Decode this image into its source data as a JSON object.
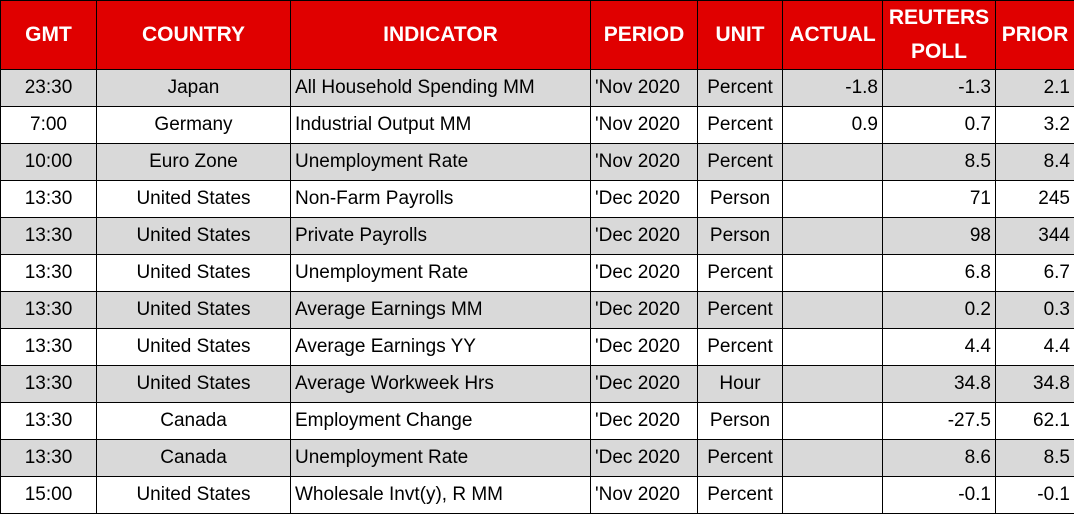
{
  "table": {
    "headers": [
      "GMT",
      "COUNTRY",
      "INDICATOR",
      "PERIOD",
      "UNIT",
      "ACTUAL",
      "REUTERS POLL",
      "PRIOR"
    ],
    "rows": [
      [
        "23:30",
        "Japan",
        "All Household Spending MM",
        "'Nov 2020",
        "Percent",
        "-1.8",
        "-1.3",
        "2.1"
      ],
      [
        "7:00",
        "Germany",
        "Industrial Output MM",
        "'Nov 2020",
        "Percent",
        "0.9",
        "0.7",
        "3.2"
      ],
      [
        "10:00",
        "Euro Zone",
        "Unemployment Rate",
        "'Nov 2020",
        "Percent",
        null,
        "8.5",
        "8.4"
      ],
      [
        "13:30",
        "United States",
        "Non-Farm Payrolls",
        "'Dec 2020",
        "Person",
        null,
        "71",
        "245"
      ],
      [
        "13:30",
        "United States",
        "Private Payrolls",
        "'Dec 2020",
        "Person",
        null,
        "98",
        "344"
      ],
      [
        "13:30",
        "United States",
        "Unemployment Rate",
        "'Dec 2020",
        "Percent",
        null,
        "6.8",
        "6.7"
      ],
      [
        "13:30",
        "United States",
        "Average Earnings MM",
        "'Dec 2020",
        "Percent",
        null,
        "0.2",
        "0.3"
      ],
      [
        "13:30",
        "United States",
        "Average Earnings YY",
        "'Dec 2020",
        "Percent",
        null,
        "4.4",
        "4.4"
      ],
      [
        "13:30",
        "United States",
        "Average Workweek Hrs",
        "'Dec 2020",
        "Hour",
        null,
        "34.8",
        "34.8"
      ],
      [
        "13:30",
        "Canada",
        "Employment Change",
        "'Dec 2020",
        "Person",
        null,
        "-27.5",
        "62.1"
      ],
      [
        "13:30",
        "Canada",
        "Unemployment Rate",
        "'Dec 2020",
        "Percent",
        null,
        "8.6",
        "8.5"
      ],
      [
        "15:00",
        "United States",
        "Wholesale Invt(y), R MM",
        "'Nov 2020",
        "Percent",
        null,
        "-0.1",
        "-0.1"
      ]
    ]
  }
}
